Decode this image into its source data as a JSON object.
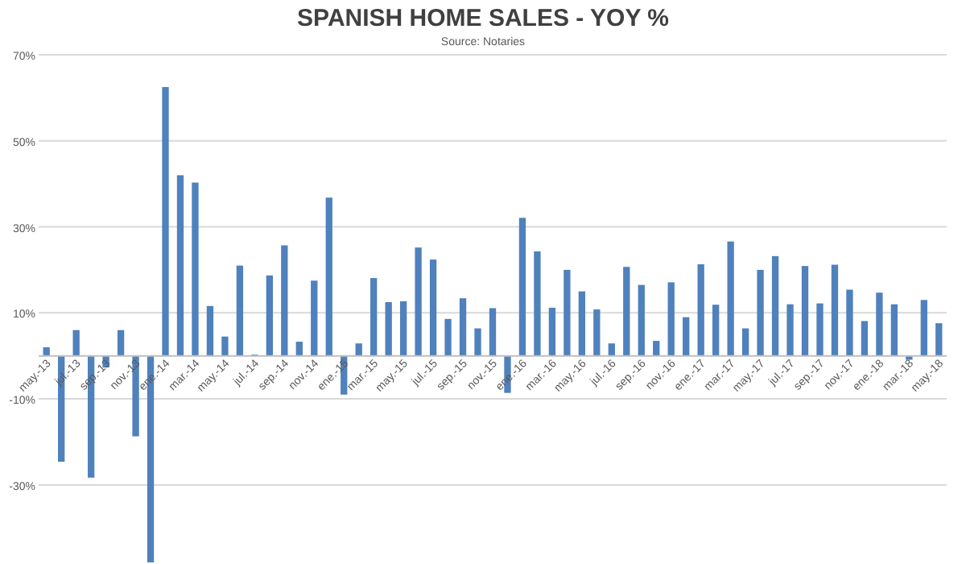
{
  "chart_data": {
    "type": "bar",
    "title": "SPANISH HOME SALES - YOY %",
    "subtitle": "Source: Notaries",
    "categories": [
      "may.-13",
      null,
      "jul.-13",
      null,
      "sep.-13",
      null,
      "nov.-13",
      null,
      "ene.-14",
      null,
      "mar.-14",
      null,
      "may.-14",
      null,
      "jul.-14",
      null,
      "sep.-14",
      null,
      "nov.-14",
      null,
      "ene.-15",
      null,
      "mar.-15",
      null,
      "may.-15",
      null,
      "jul.-15",
      null,
      "sep.-15",
      null,
      "nov.-15",
      null,
      "ene.-16",
      null,
      "mar.-16",
      null,
      "may.-16",
      null,
      "jul.-16",
      null,
      "sep.-16",
      null,
      "nov.-16",
      null,
      "ene.-17",
      null,
      "mar.-17",
      null,
      "may.-17",
      null,
      "jul.-17",
      null,
      "sep.-17",
      null,
      "nov.-17",
      null,
      "ene.-18",
      null,
      "mar.-18",
      null,
      "may.-18"
    ],
    "values": [
      2.0,
      -24.6,
      6.0,
      -28.3,
      -2.7,
      6.0,
      -18.7,
      -48,
      62.5,
      42,
      40.3,
      11.6,
      4.5,
      21,
      0.3,
      18.7,
      25.7,
      3.3,
      17.5,
      36.8,
      -9.0,
      2.9,
      18.1,
      12.5,
      12.7,
      25.2,
      22.4,
      8.6,
      13.4,
      6.4,
      11.1,
      -8.6,
      32.1,
      24.3,
      11.2,
      20,
      15,
      10.8,
      2.9,
      20.7,
      16.5,
      3.5,
      17.1,
      9.0,
      21.3,
      11.9,
      26.6,
      6.4,
      20,
      23.2,
      12,
      20.9,
      12.2,
      21.2,
      15.4,
      8.1,
      14.7,
      12,
      -0.9,
      13,
      7.6
    ],
    "color": "#4f81bd",
    "ylim": [
      -48,
      70
    ],
    "yticks": [
      {
        "value": -30,
        "label": "-30%"
      },
      {
        "value": -10,
        "label": "-10%"
      },
      {
        "value": 10,
        "label": "10%"
      },
      {
        "value": 30,
        "label": "30%"
      },
      {
        "value": 50,
        "label": "50%"
      },
      {
        "value": 70,
        "label": "70%"
      }
    ],
    "grid": true
  }
}
